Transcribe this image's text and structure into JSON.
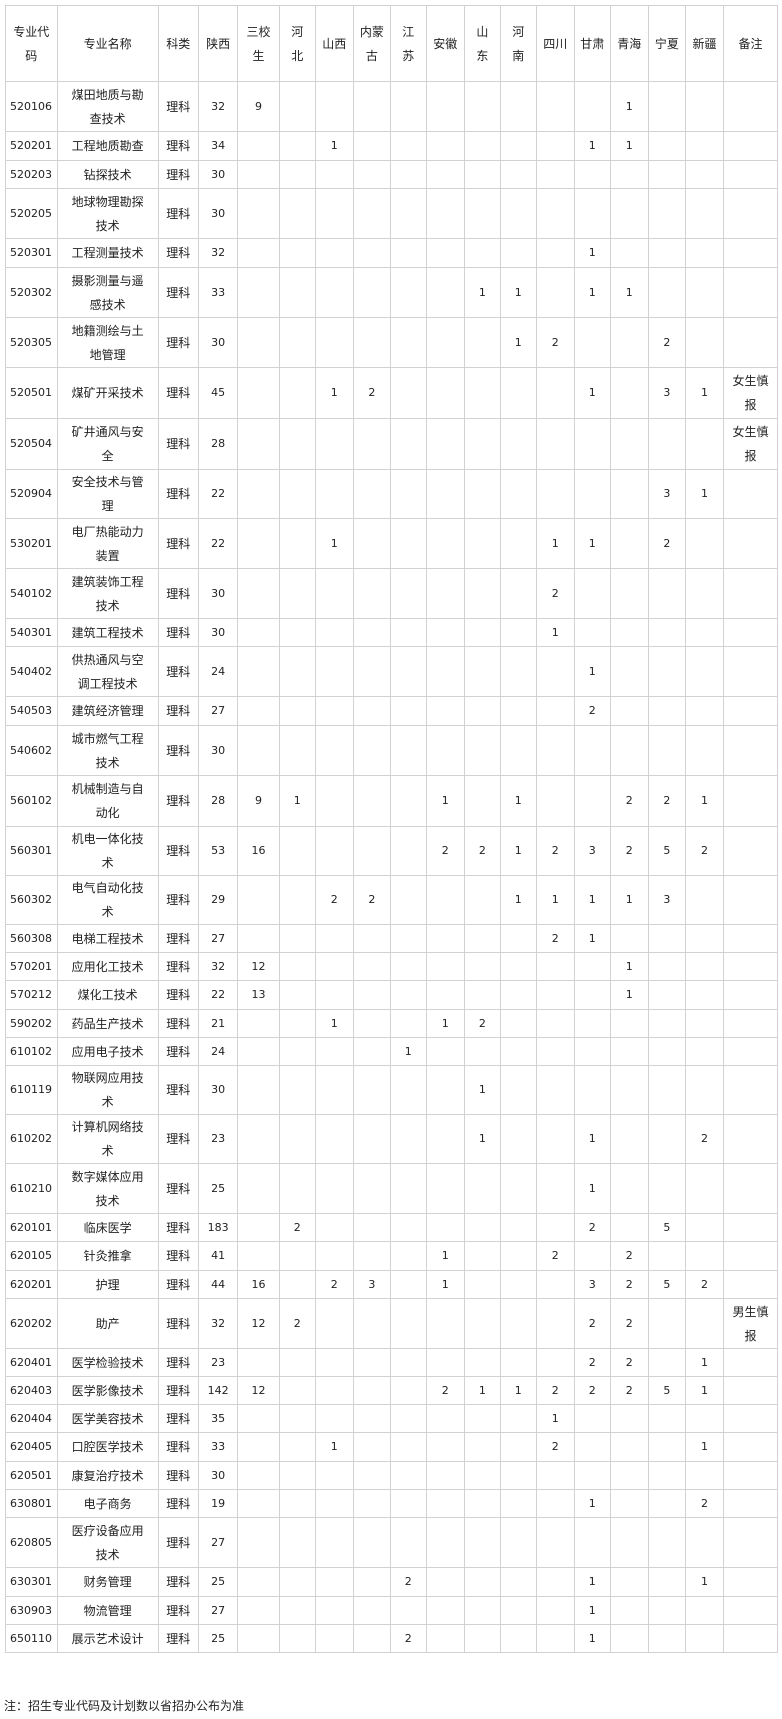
{
  "headers": [
    "专业代码",
    "专业名称",
    "科类",
    "陕西",
    "三校生",
    "河北",
    "山西",
    "内蒙古",
    "江苏",
    "安徽",
    "山东",
    "河南",
    "四川",
    "甘肃",
    "青海",
    "宁夏",
    "新疆",
    "备注"
  ],
  "rows": [
    [
      "520106",
      "煤田地质与勘查技术",
      "理科",
      "32",
      "9",
      "",
      "",
      "",
      "",
      "",
      "",
      "",
      "",
      "",
      "1",
      "",
      "",
      ""
    ],
    [
      "520201",
      "工程地质勘查",
      "理科",
      "34",
      "",
      "",
      "1",
      "",
      "",
      "",
      "",
      "",
      "",
      "1",
      "1",
      "",
      "",
      ""
    ],
    [
      "520203",
      "钻探技术",
      "理科",
      "30",
      "",
      "",
      "",
      "",
      "",
      "",
      "",
      "",
      "",
      "",
      "",
      "",
      "",
      ""
    ],
    [
      "520205",
      "地球物理勘探技术",
      "理科",
      "30",
      "",
      "",
      "",
      "",
      "",
      "",
      "",
      "",
      "",
      "",
      "",
      "",
      "",
      ""
    ],
    [
      "520301",
      "工程测量技术",
      "理科",
      "32",
      "",
      "",
      "",
      "",
      "",
      "",
      "",
      "",
      "",
      "1",
      "",
      "",
      "",
      ""
    ],
    [
      "520302",
      "摄影测量与遥感技术",
      "理科",
      "33",
      "",
      "",
      "",
      "",
      "",
      "",
      "1",
      "1",
      "",
      "1",
      "1",
      "",
      "",
      ""
    ],
    [
      "520305",
      "地籍测绘与土地管理",
      "理科",
      "30",
      "",
      "",
      "",
      "",
      "",
      "",
      "",
      "1",
      "2",
      "",
      "",
      "2",
      "",
      ""
    ],
    [
      "520501",
      "煤矿开采技术",
      "理科",
      "45",
      "",
      "",
      "1",
      "2",
      "",
      "",
      "",
      "",
      "",
      "1",
      "",
      "3",
      "1",
      "女生慎报"
    ],
    [
      "520504",
      "矿井通风与安全",
      "理科",
      "28",
      "",
      "",
      "",
      "",
      "",
      "",
      "",
      "",
      "",
      "",
      "",
      "",
      "",
      "女生慎报"
    ],
    [
      "520904",
      "安全技术与管理",
      "理科",
      "22",
      "",
      "",
      "",
      "",
      "",
      "",
      "",
      "",
      "",
      "",
      "",
      "3",
      "1",
      ""
    ],
    [
      "530201",
      "电厂热能动力装置",
      "理科",
      "22",
      "",
      "",
      "1",
      "",
      "",
      "",
      "",
      "",
      "1",
      "1",
      "",
      "2",
      "",
      ""
    ],
    [
      "540102",
      "建筑装饰工程技术",
      "理科",
      "30",
      "",
      "",
      "",
      "",
      "",
      "",
      "",
      "",
      "2",
      "",
      "",
      "",
      "",
      ""
    ],
    [
      "540301",
      "建筑工程技术",
      "理科",
      "30",
      "",
      "",
      "",
      "",
      "",
      "",
      "",
      "",
      "1",
      "",
      "",
      "",
      "",
      ""
    ],
    [
      "540402",
      "供热通风与空调工程技术",
      "理科",
      "24",
      "",
      "",
      "",
      "",
      "",
      "",
      "",
      "",
      "",
      "1",
      "",
      "",
      "",
      ""
    ],
    [
      "540503",
      "建筑经济管理",
      "理科",
      "27",
      "",
      "",
      "",
      "",
      "",
      "",
      "",
      "",
      "",
      "2",
      "",
      "",
      "",
      ""
    ],
    [
      "540602",
      "城市燃气工程技术",
      "理科",
      "30",
      "",
      "",
      "",
      "",
      "",
      "",
      "",
      "",
      "",
      "",
      "",
      "",
      "",
      ""
    ],
    [
      "560102",
      "机械制造与自动化",
      "理科",
      "28",
      "9",
      "1",
      "",
      "",
      "",
      "1",
      "",
      "1",
      "",
      "",
      "2",
      "2",
      "1",
      ""
    ],
    [
      "560301",
      "机电一体化技术",
      "理科",
      "53",
      "16",
      "",
      "",
      "",
      "",
      "2",
      "2",
      "1",
      "2",
      "3",
      "2",
      "5",
      "2",
      ""
    ],
    [
      "560302",
      "电气自动化技术",
      "理科",
      "29",
      "",
      "",
      "2",
      "2",
      "",
      "",
      "",
      "1",
      "1",
      "1",
      "1",
      "3",
      "",
      ""
    ],
    [
      "560308",
      "电梯工程技术",
      "理科",
      "27",
      "",
      "",
      "",
      "",
      "",
      "",
      "",
      "",
      "2",
      "1",
      "",
      "",
      "",
      ""
    ],
    [
      "570201",
      "应用化工技术",
      "理科",
      "32",
      "12",
      "",
      "",
      "",
      "",
      "",
      "",
      "",
      "",
      "",
      "1",
      "",
      "",
      ""
    ],
    [
      "570212",
      "煤化工技术",
      "理科",
      "22",
      "13",
      "",
      "",
      "",
      "",
      "",
      "",
      "",
      "",
      "",
      "1",
      "",
      "",
      ""
    ],
    [
      "590202",
      "药品生产技术",
      "理科",
      "21",
      "",
      "",
      "1",
      "",
      "",
      "1",
      "2",
      "",
      "",
      "",
      "",
      "",
      "",
      ""
    ],
    [
      "610102",
      "应用电子技术",
      "理科",
      "24",
      "",
      "",
      "",
      "",
      "1",
      "",
      "",
      "",
      "",
      "",
      "",
      "",
      "",
      ""
    ],
    [
      "610119",
      "物联网应用技术",
      "理科",
      "30",
      "",
      "",
      "",
      "",
      "",
      "",
      "1",
      "",
      "",
      "",
      "",
      "",
      "",
      ""
    ],
    [
      "610202",
      "计算机网络技术",
      "理科",
      "23",
      "",
      "",
      "",
      "",
      "",
      "",
      "1",
      "",
      "",
      "1",
      "",
      "",
      "2",
      ""
    ],
    [
      "610210",
      "数字媒体应用技术",
      "理科",
      "25",
      "",
      "",
      "",
      "",
      "",
      "",
      "",
      "",
      "",
      "1",
      "",
      "",
      "",
      ""
    ],
    [
      "620101",
      "临床医学",
      "理科",
      "183",
      "",
      "2",
      "",
      "",
      "",
      "",
      "",
      "",
      "",
      "2",
      "",
      "5",
      "",
      ""
    ],
    [
      "620105",
      "针灸推拿",
      "理科",
      "41",
      "",
      "",
      "",
      "",
      "",
      "1",
      "",
      "",
      "2",
      "",
      "2",
      "",
      "",
      ""
    ],
    [
      "620201",
      "护理",
      "理科",
      "44",
      "16",
      "",
      "2",
      "3",
      "",
      "1",
      "",
      "",
      "",
      "3",
      "2",
      "5",
      "2",
      ""
    ],
    [
      "620202",
      "助产",
      "理科",
      "32",
      "12",
      "2",
      "",
      "",
      "",
      "",
      "",
      "",
      "",
      "2",
      "2",
      "",
      "",
      "男生慎报"
    ],
    [
      "620401",
      "医学检验技术",
      "理科",
      "23",
      "",
      "",
      "",
      "",
      "",
      "",
      "",
      "",
      "",
      "2",
      "2",
      "",
      "1",
      ""
    ],
    [
      "620403",
      "医学影像技术",
      "理科",
      "142",
      "12",
      "",
      "",
      "",
      "",
      "2",
      "1",
      "1",
      "2",
      "2",
      "2",
      "5",
      "1",
      ""
    ],
    [
      "620404",
      "医学美容技术",
      "理科",
      "35",
      "",
      "",
      "",
      "",
      "",
      "",
      "",
      "",
      "1",
      "",
      "",
      "",
      "",
      ""
    ],
    [
      "620405",
      "口腔医学技术",
      "理科",
      "33",
      "",
      "",
      "1",
      "",
      "",
      "",
      "",
      "",
      "2",
      "",
      "",
      "",
      "1",
      ""
    ],
    [
      "620501",
      "康复治疗技术",
      "理科",
      "30",
      "",
      "",
      "",
      "",
      "",
      "",
      "",
      "",
      "",
      "",
      "",
      "",
      "",
      ""
    ],
    [
      "630801",
      "电子商务",
      "理科",
      "19",
      "",
      "",
      "",
      "",
      "",
      "",
      "",
      "",
      "",
      "1",
      "",
      "",
      "2",
      ""
    ],
    [
      "620805",
      "医疗设备应用技术",
      "理科",
      "27",
      "",
      "",
      "",
      "",
      "",
      "",
      "",
      "",
      "",
      "",
      "",
      "",
      "",
      ""
    ],
    [
      "630301",
      "财务管理",
      "理科",
      "25",
      "",
      "",
      "",
      "",
      "2",
      "",
      "",
      "",
      "",
      "1",
      "",
      "",
      "1",
      ""
    ],
    [
      "630903",
      "物流管理",
      "理科",
      "27",
      "",
      "",
      "",
      "",
      "",
      "",
      "",
      "",
      "",
      "1",
      "",
      "",
      "",
      ""
    ],
    [
      "650110",
      "展示艺术设计",
      "理科",
      "25",
      "",
      "",
      "",
      "",
      "2",
      "",
      "",
      "",
      "",
      "1",
      "",
      "",
      "",
      ""
    ]
  ],
  "note": "注：招生专业代码及计划数以省招办公布为准"
}
